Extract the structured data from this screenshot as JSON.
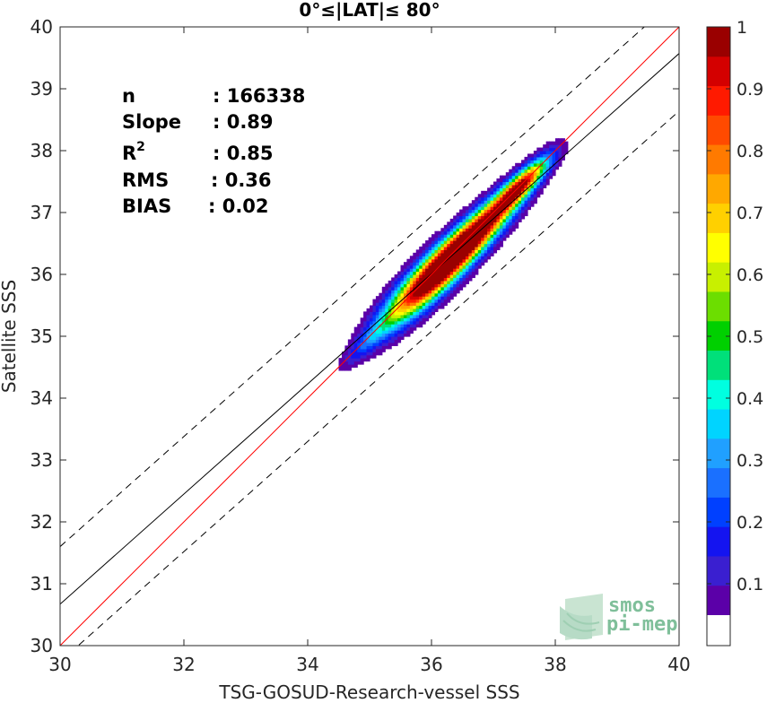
{
  "chart_data": {
    "type": "heatmap",
    "title": "0°≤|LAT|≤ 80°",
    "xlabel": "TSG-GOSUD-Research-vessel SSS",
    "ylabel": "Satellite SSS",
    "xlim": [
      30,
      40
    ],
    "ylim": [
      30,
      40
    ],
    "xticks": [
      "30",
      "32",
      "34",
      "36",
      "38",
      "40"
    ],
    "yticks": [
      "30",
      "31",
      "32",
      "33",
      "34",
      "35",
      "36",
      "37",
      "38",
      "39",
      "40"
    ],
    "stats": [
      {
        "label": "n",
        "value": ": 166338"
      },
      {
        "label": "Slope",
        "value": ": 0.89"
      },
      {
        "label": "R",
        "sup": "2",
        "value": ": 0.85"
      },
      {
        "label": "RMS",
        "value": ": 0.36"
      },
      {
        "label": "BIAS",
        "value": ": 0.02"
      }
    ],
    "lines": {
      "identity": {
        "slope": 1.0,
        "intercept": 0.0,
        "color": "#ff0000"
      },
      "regression": {
        "slope": 0.89,
        "intercept": 3.97,
        "color": "#000000"
      },
      "bounds": [
        {
          "slope": 0.89,
          "intercept": 4.9,
          "style": "dashed"
        },
        {
          "slope": 0.89,
          "intercept": 3.04,
          "style": "dashed"
        }
      ]
    },
    "density_peaks": [
      {
        "x": 36.0,
        "y": 35.95,
        "density": 1.0
      },
      {
        "x": 36.7,
        "y": 36.65,
        "density": 0.85
      },
      {
        "x": 37.45,
        "y": 37.45,
        "density": 0.8
      },
      {
        "x": 35.0,
        "y": 34.95,
        "density": 0.15
      }
    ],
    "colorbar": {
      "min": 0.05,
      "max": 1.0,
      "ticks": [
        "0.1",
        "0.2",
        "0.3",
        "0.4",
        "0.5",
        "0.6",
        "0.7",
        "0.8",
        "0.9",
        "1"
      ],
      "colors": [
        "#5b00a8",
        "#3a1fd0",
        "#1414f0",
        "#0040ff",
        "#1a70ff",
        "#20a0ff",
        "#00d4ff",
        "#00ffe0",
        "#00e07a",
        "#00d000",
        "#6cde00",
        "#c8f000",
        "#ffff00",
        "#ffd000",
        "#ffa800",
        "#ff7a00",
        "#ff4a00",
        "#ff1a00",
        "#d40000",
        "#9a0000"
      ]
    }
  },
  "logo": {
    "line1": "smos",
    "line2": "pi-mep"
  }
}
